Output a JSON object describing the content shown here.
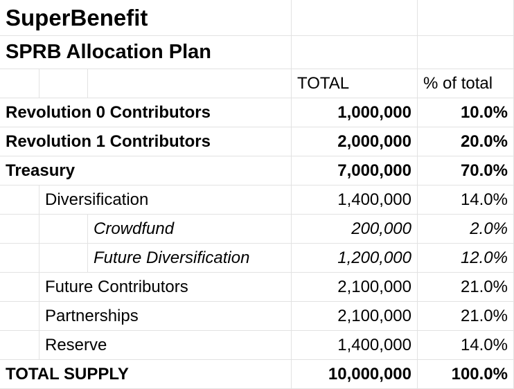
{
  "title": "SuperBenefit",
  "subtitle": "SPRB Allocation Plan",
  "headers": {
    "total": "TOTAL",
    "pct": "% of total"
  },
  "rows": [
    {
      "label": "Revolution 0 Contributors",
      "total": "1,000,000",
      "pct": "10.0%",
      "level": 0,
      "style": "bold"
    },
    {
      "label": "Revolution 1 Contributors",
      "total": "2,000,000",
      "pct": "20.0%",
      "level": 0,
      "style": "bold"
    },
    {
      "label": "Treasury",
      "total": "7,000,000",
      "pct": "70.0%",
      "level": 0,
      "style": "bold"
    },
    {
      "label": "Diversification",
      "total": "1,400,000",
      "pct": "14.0%",
      "level": 1,
      "style": "normal"
    },
    {
      "label": "Crowdfund",
      "total": "200,000",
      "pct": "2.0%",
      "level": 2,
      "style": "italic"
    },
    {
      "label": "Future Diversification",
      "total": "1,200,000",
      "pct": "12.0%",
      "level": 2,
      "style": "italic"
    },
    {
      "label": "Future Contributors",
      "total": "2,100,000",
      "pct": "21.0%",
      "level": 1,
      "style": "normal"
    },
    {
      "label": "Partnerships",
      "total": "2,100,000",
      "pct": "21.0%",
      "level": 1,
      "style": "normal"
    },
    {
      "label": "Reserve",
      "total": "1,400,000",
      "pct": "14.0%",
      "level": 1,
      "style": "normal"
    },
    {
      "label": "TOTAL SUPPLY",
      "total": "10,000,000",
      "pct": "100.0%",
      "level": 0,
      "style": "bold"
    }
  ]
}
